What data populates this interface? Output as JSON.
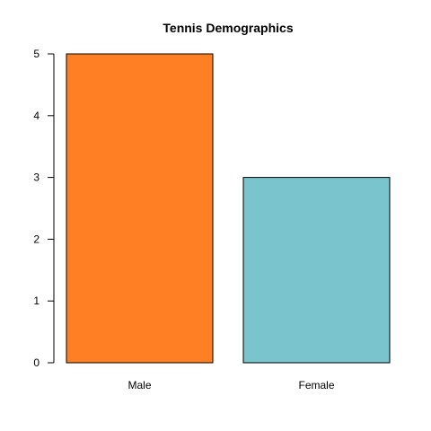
{
  "chart_data": {
    "type": "bar",
    "title": "Tennis Demographics",
    "categories": [
      "Male",
      "Female"
    ],
    "values": [
      5,
      3
    ],
    "colors": [
      "#ff7f24",
      "#7ac5cd"
    ],
    "ylim": [
      0,
      5
    ],
    "yticks": [
      0,
      1,
      2,
      3,
      4,
      5
    ],
    "xlabel": "",
    "ylabel": "",
    "grid": false,
    "legend": "none"
  }
}
